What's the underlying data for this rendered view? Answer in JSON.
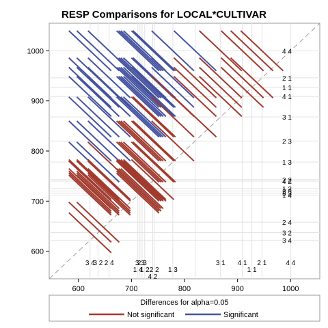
{
  "chart_data": {
    "type": "diffogram",
    "title": "RESP Comparisons for LOCAL*CULTIVAR",
    "xlim": [
      545,
      1055
    ],
    "ylim": [
      545,
      1055
    ],
    "xticks": [
      600,
      700,
      800,
      900,
      1000
    ],
    "yticks": [
      600,
      700,
      800,
      900,
      1000
    ],
    "grid": true,
    "diagonal_reference_line": true,
    "legend": {
      "title": "Differences for alpha=0.05",
      "placement": "bottom",
      "entries": [
        {
          "label": "Not significant",
          "color": "#a23a2e"
        },
        {
          "label": "Significant",
          "color": "#4452a0"
        }
      ]
    },
    "levels": [
      {
        "label": "3 4",
        "mean": 622
      },
      {
        "label": "3 2",
        "mean": 637
      },
      {
        "label": "2 4",
        "mean": 658
      },
      {
        "label": "1 4",
        "mean": 712
      },
      {
        "label": "3 3",
        "mean": 716
      },
      {
        "label": "2 3",
        "mean": 720
      },
      {
        "label": "1 2",
        "mean": 725
      },
      {
        "label": "4 2",
        "mean": 740
      },
      {
        "label": "2 2",
        "mean": 743
      },
      {
        "label": "1 3",
        "mean": 778
      },
      {
        "label": "2 3",
        "mean": 820
      },
      {
        "label": "3 1",
        "mean": 868
      },
      {
        "label": "4 1",
        "mean": 909
      },
      {
        "label": "1 1",
        "mean": 927
      },
      {
        "label": "2 1",
        "mean": 946
      },
      {
        "label": "4 4",
        "mean": 1000
      }
    ],
    "bottom_labels_row1": [
      "3 4",
      "3 2",
      "2 4",
      "3 3",
      "2 3",
      "3 1",
      "4 1",
      "2 1",
      "4 4"
    ],
    "bottom_labels_row2": [
      "1 4",
      "1 2",
      "2 2",
      "1 3",
      "1 1"
    ],
    "bottom_labels_row3": [
      "4 2"
    ]
  }
}
